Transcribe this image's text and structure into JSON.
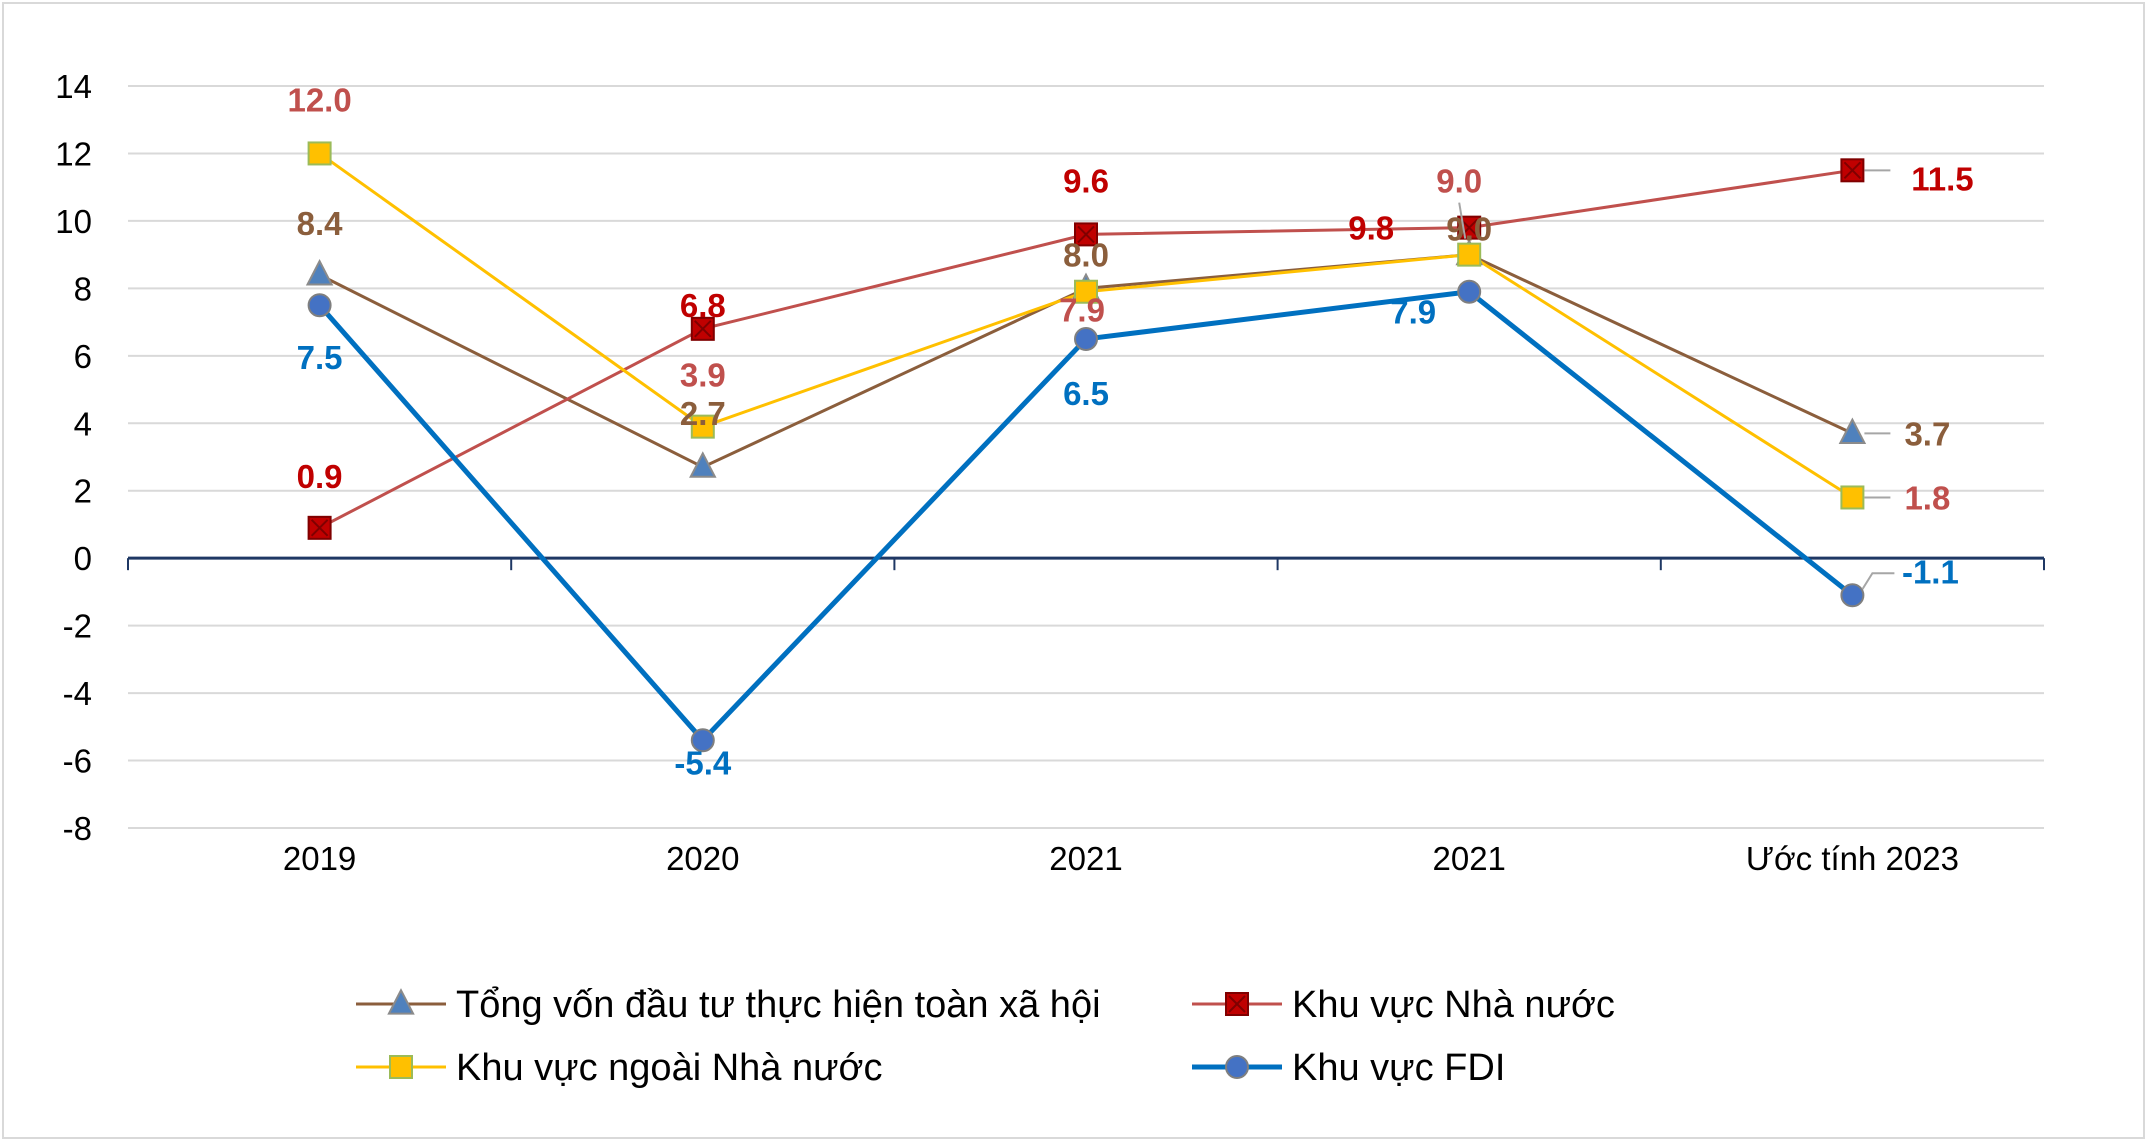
{
  "chart_data": {
    "type": "line",
    "categories": [
      "2019",
      "2020",
      "2021",
      "2021",
      "Ước tính 2023"
    ],
    "ylim": [
      -8,
      14
    ],
    "yticks": [
      14,
      12,
      10,
      8,
      6,
      4,
      2,
      0,
      -2,
      -4,
      -6,
      -8
    ],
    "grid": true,
    "legend_position": "bottom",
    "series": [
      {
        "name": "Tổng vốn đầu tư thực hiện toàn xã hội",
        "values": [
          8.4,
          2.7,
          8.0,
          9.0,
          3.7
        ],
        "labels": [
          "8.4",
          "2.7",
          "8.0",
          "9.0",
          "3.7"
        ],
        "color": "#8B5E3C",
        "label_color": "#8B5E3C",
        "marker": "triangle",
        "marker_fill": "#4F81BD"
      },
      {
        "name": "Khu vực Nhà nước",
        "values": [
          0.9,
          6.8,
          9.6,
          9.8,
          11.5
        ],
        "labels": [
          "0.9",
          "6.8",
          "9.6",
          "9.8",
          "11.5"
        ],
        "color": "#C0504D",
        "label_color": "#C00000",
        "marker": "square-x",
        "marker_fill": "#C00000"
      },
      {
        "name": "Khu vực ngoài Nhà nước",
        "values": [
          12.0,
          3.9,
          7.9,
          9.0,
          1.8
        ],
        "labels": [
          "12.0",
          "3.9",
          "7.9",
          "9.0",
          "1.8"
        ],
        "color": "#FFC000",
        "label_color": "#C0504D",
        "marker": "square",
        "marker_fill": "#FFC000"
      },
      {
        "name": "Khu vực FDI",
        "values": [
          7.5,
          -5.4,
          6.5,
          7.9,
          -1.1
        ],
        "labels": [
          "7.5",
          "-5.4",
          "6.5",
          "7.9",
          "-1.1"
        ],
        "color": "#0070C0",
        "label_color": "#0070C0",
        "marker": "circle",
        "marker_fill": "#4472C4"
      }
    ]
  }
}
